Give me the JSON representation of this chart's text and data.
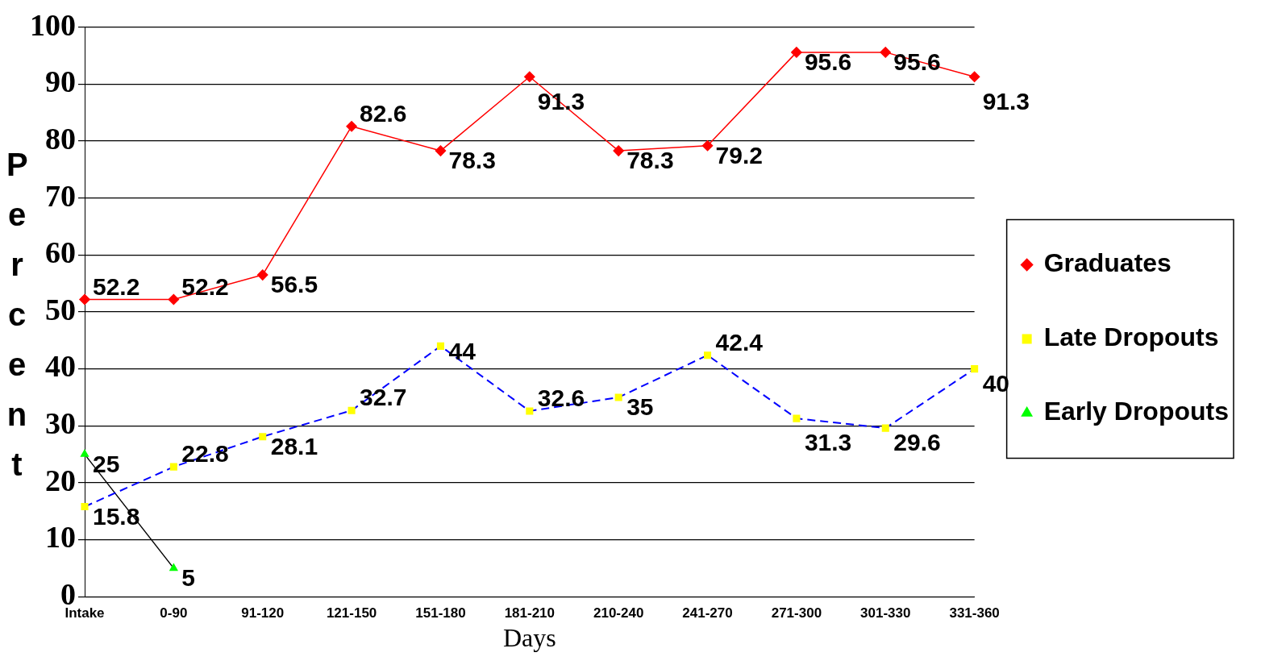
{
  "chart_data": {
    "type": "line",
    "xlabel": "Days",
    "ylabel": "Percent",
    "categories": [
      "Intake",
      "0-90",
      "91-120",
      "121-150",
      "151-180",
      "181-210",
      "210-240",
      "241-270",
      "271-300",
      "301-330",
      "331-360"
    ],
    "series": [
      {
        "name": "Graduates",
        "color": "#ff0000",
        "marker": "diamond",
        "line_style": "solid",
        "values": [
          52.2,
          52.2,
          56.5,
          82.6,
          78.3,
          91.3,
          78.3,
          79.2,
          95.6,
          95.6,
          91.3
        ]
      },
      {
        "name": "Late Dropouts",
        "color": "#0000ff",
        "marker": "square",
        "colors": [
          "#ffff00",
          "#ffff00",
          "#ffff00",
          "#ffff00",
          "#ffff00",
          "#ffff00",
          "#ffff00",
          "#ffff00",
          "#ffff00",
          "#ffff00",
          "#ffff00"
        ],
        "line_style": "dashed",
        "values": [
          15.8,
          22.8,
          28.1,
          32.7,
          44,
          32.6,
          35,
          42.4,
          31.3,
          29.6,
          40
        ]
      },
      {
        "name": "Early Dropouts",
        "color": "#000000",
        "marker": "triangle",
        "colors": [
          "#00ff00",
          "#00ff00",
          "#00ff00",
          "#00ff00",
          "#00ff00",
          "#00ff00",
          "#00ff00",
          "#00ff00",
          "#00ff00",
          "#00ff00",
          "#00ff00"
        ],
        "line_style": "solid",
        "values": [
          25,
          5,
          null,
          null,
          null,
          null,
          null,
          null,
          null,
          null,
          null
        ]
      }
    ],
    "ylim": [
      0,
      100
    ],
    "yticks": [
      0,
      10,
      20,
      30,
      40,
      50,
      60,
      70,
      80,
      90,
      100
    ],
    "grid": "y",
    "legend": "right",
    "data_labels": true
  }
}
